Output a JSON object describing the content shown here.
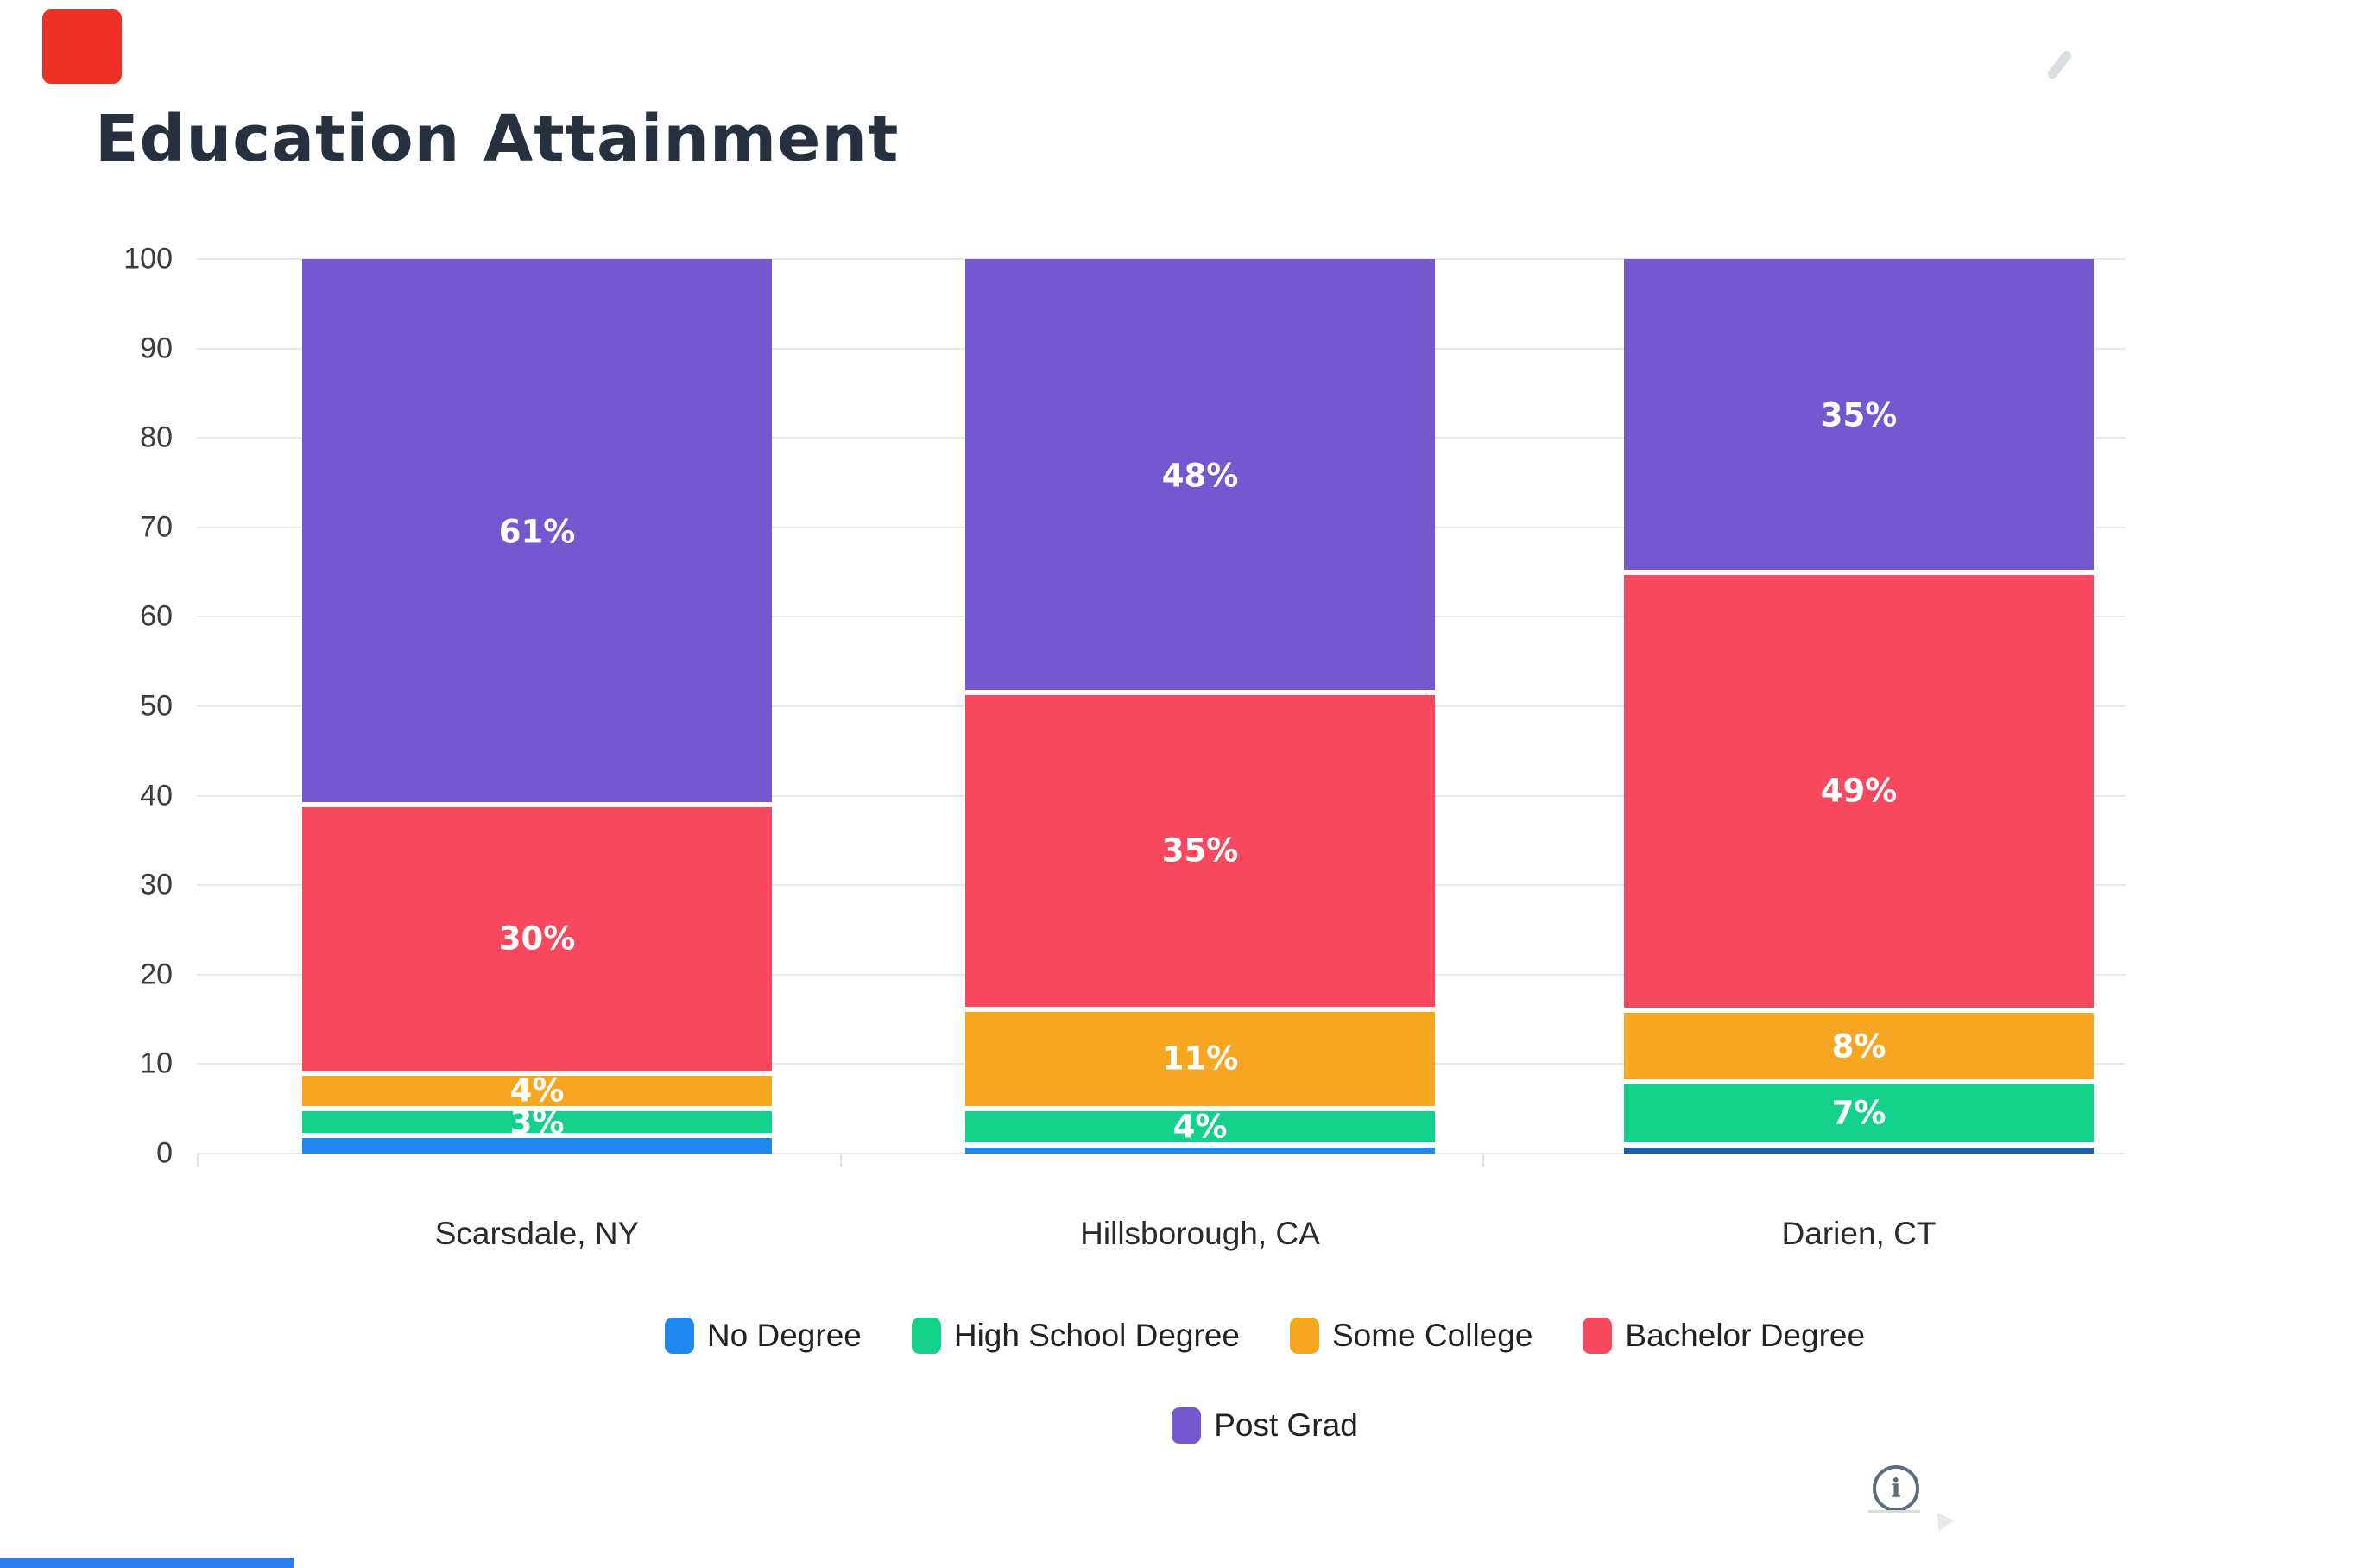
{
  "page": {
    "background": "#ffffff",
    "title_color": "#27303F"
  },
  "artifacts": {
    "top_left_square_color": "#EE3124",
    "bottom_left_bar_color": "#2D7FF0",
    "swoosh_color": "#D9DDE4"
  },
  "chart_data": {
    "type": "bar",
    "stacked": true,
    "title": "Education Attainment",
    "categories": [
      "Scarsdale, NY",
      "Hillsborough, CA",
      "Darien, CT"
    ],
    "series": [
      {
        "name": "No Degree",
        "color": "#1E87F0",
        "values": [
          2,
          1,
          1
        ],
        "labels": [
          "",
          "",
          ""
        ],
        "color_overrides": {
          "2": "#1D5FAE"
        }
      },
      {
        "name": "High School Degree",
        "color": "#13D18B",
        "values": [
          3,
          4,
          7
        ],
        "labels": [
          "3%",
          "4%",
          "7%"
        ]
      },
      {
        "name": "Some College",
        "color": "#F7A621",
        "values": [
          4,
          11,
          8
        ],
        "labels": [
          "4%",
          "11%",
          "8%"
        ]
      },
      {
        "name": "Bachelor Degree",
        "color": "#F8485E",
        "values": [
          30,
          35,
          49
        ],
        "labels": [
          "30%",
          "35%",
          "49%"
        ]
      },
      {
        "name": "Post Grad",
        "color": "#7358CF",
        "values": [
          61,
          48,
          35
        ],
        "labels": [
          "61%",
          "48%",
          "35%"
        ]
      }
    ],
    "y_ticks": [
      0,
      10,
      20,
      30,
      40,
      50,
      60,
      70,
      80,
      90,
      100
    ],
    "ylim": [
      0,
      100
    ],
    "grid": true,
    "grid_color": "#E8E8E8",
    "label_text_color": "#ffffff",
    "legend_position": "bottom",
    "legend_rows": [
      [
        0,
        1,
        2,
        3
      ],
      [
        4
      ]
    ]
  },
  "footer": {
    "info_symbol": "i"
  }
}
